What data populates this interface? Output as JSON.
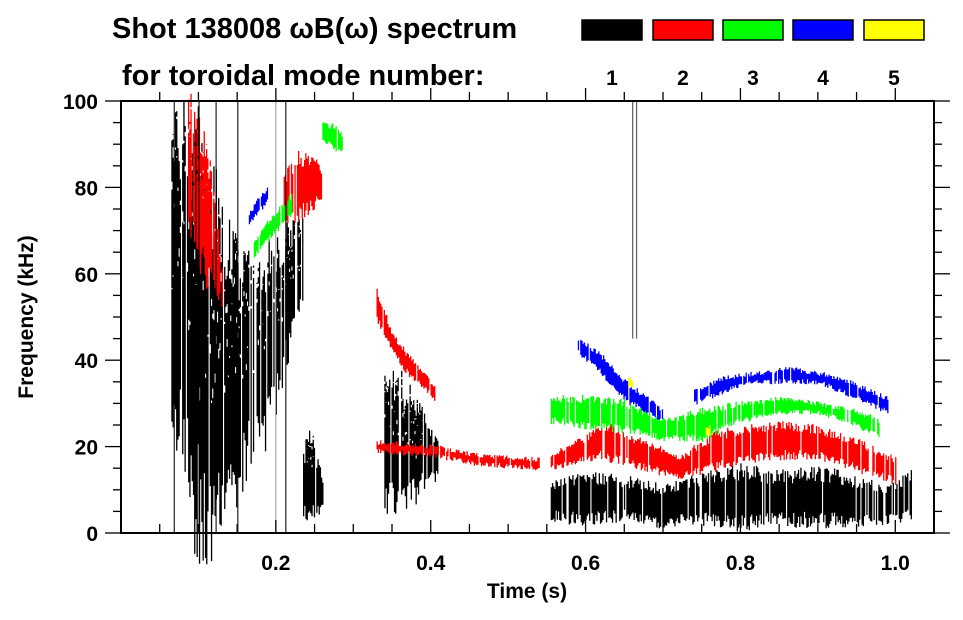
{
  "chart_data": {
    "type": "heatmap",
    "title": "Shot 138008 ωB(ω) spectrum",
    "subtitle": "for toroidal mode number:",
    "xlabel": "Time (s)",
    "ylabel": "Frequency (kHz)",
    "xlim": [
      0,
      1.05
    ],
    "ylim": [
      0,
      100
    ],
    "x_ticks": [
      0.2,
      0.4,
      0.6,
      0.8,
      1.0
    ],
    "x_tick_labels": [
      "0.2",
      "0.4",
      "0.6",
      "0.8",
      "1.0"
    ],
    "y_ticks": [
      0,
      20,
      40,
      60,
      80,
      100
    ],
    "y_tick_labels": [
      "0",
      "20",
      "40",
      "60",
      "80",
      "100"
    ],
    "legend_placement": "top-right",
    "legend": [
      {
        "label": "1",
        "color": "#000000"
      },
      {
        "label": "2",
        "color": "#ff0000"
      },
      {
        "label": "3",
        "color": "#00ff00"
      },
      {
        "label": "4",
        "color": "#0000ff"
      },
      {
        "label": "5",
        "color": "#ffff00"
      }
    ],
    "series": [
      {
        "name": "1",
        "features": [
          {
            "t": [
              0.065,
              0.08,
              0.095,
              0.11,
              0.13,
              0.15,
              0.17,
              0.19,
              0.205,
              0.22,
              0.235
            ],
            "f_low": [
              35,
              20,
              8,
              5,
              8,
              15,
              20,
              25,
              35,
              45,
              55
            ],
            "f_high": [
              96,
              92,
              88,
              80,
              70,
              62,
              60,
              62,
              66,
              72,
              70
            ]
          },
          {
            "t": [
              0.235,
              0.245,
              0.26
            ],
            "f_low": [
              5,
              4,
              6
            ],
            "f_high": [
              18,
              22,
              12
            ]
          },
          {
            "t": [
              0.34,
              0.36,
              0.38,
              0.4,
              0.41
            ],
            "f_low": [
              8,
              8,
              10,
              12,
              14
            ],
            "f_high": [
              36,
              34,
              30,
              24,
              20
            ]
          },
          {
            "t": [
              0.555,
              0.6,
              0.65,
              0.7,
              0.72,
              0.76,
              0.8,
              0.85,
              0.9,
              0.95,
              0.99,
              1.02
            ],
            "f_low": [
              4,
              3,
              4,
              2,
              3,
              3,
              2,
              3,
              3,
              3,
              3,
              4
            ],
            "f_high": [
              11,
              13,
              12,
              10,
              11,
              13,
              14,
              13,
              14,
              12,
              10,
              13
            ]
          }
        ]
      },
      {
        "name": "2",
        "features": [
          {
            "t": [
              0.085,
              0.1,
              0.115,
              0.13
            ],
            "f_low": [
              70,
              65,
              58,
              52
            ],
            "f_high": [
              100,
              94,
              82,
              62
            ]
          },
          {
            "t": [
              0.21,
              0.23,
              0.25,
              0.26
            ],
            "f_low": [
              73,
              74,
              76,
              78
            ],
            "f_high": [
              82,
              87,
              86,
              82
            ]
          },
          {
            "t": [
              0.33,
              0.35,
              0.37,
              0.39,
              0.405
            ],
            "f_low": [
              50,
              42,
              37,
              34,
              31
            ],
            "f_high": [
              56,
              46,
              41,
              37,
              34
            ]
          },
          {
            "t": [
              0.33,
              0.4,
              0.46,
              0.54
            ],
            "f_low": [
              19,
              18,
              16,
              15
            ],
            "f_high": [
              21,
              20,
              18,
              17
            ]
          },
          {
            "t": [
              0.555,
              0.6,
              0.62,
              0.66,
              0.7,
              0.72,
              0.76,
              0.8,
              0.85,
              0.9,
              0.95,
              1.0
            ],
            "f_low": [
              15,
              17,
              18,
              16,
              14,
              13,
              15,
              17,
              18,
              18,
              15,
              12
            ],
            "f_high": [
              18,
              22,
              25,
              22,
              19,
              17,
              22,
              24,
              25,
              24,
              21,
              17
            ]
          }
        ]
      },
      {
        "name": "3",
        "features": [
          {
            "t": [
              0.26,
              0.275,
              0.285
            ],
            "f_low": [
              91,
              89,
              88
            ],
            "f_high": [
              95,
              94,
              92
            ]
          },
          {
            "t": [
              0.17,
              0.19,
              0.21,
              0.22
            ],
            "f_low": [
              64,
              68,
              72,
              74
            ],
            "f_high": [
              67,
              72,
              76,
              78
            ]
          },
          {
            "t": [
              0.555,
              0.6,
              0.65,
              0.7,
              0.75,
              0.8,
              0.85,
              0.9,
              0.95,
              0.98
            ],
            "f_low": [
              26,
              25,
              24,
              22,
              22,
              26,
              28,
              28,
              25,
              22
            ],
            "f_high": [
              31,
              31,
              30,
              26,
              28,
              30,
              31,
              30,
              28,
              26
            ]
          }
        ]
      },
      {
        "name": "4",
        "features": [
          {
            "t": [
              0.165,
              0.18,
              0.19
            ],
            "f_low": [
              72,
              75,
              77
            ],
            "f_high": [
              74,
              78,
              80
            ]
          },
          {
            "t": [
              0.59,
              0.62,
              0.65,
              0.68,
              0.7
            ],
            "f_low": [
              42,
              37,
              31,
              28,
              26
            ],
            "f_high": [
              45,
              41,
              35,
              31,
              28
            ]
          },
          {
            "t": [
              0.74,
              0.78,
              0.82,
              0.86,
              0.9,
              0.94,
              0.99
            ],
            "f_low": [
              30,
              33,
              35,
              35,
              35,
              32,
              28
            ],
            "f_high": [
              33,
              36,
              37,
              38,
              37,
              35,
              31
            ]
          }
        ]
      },
      {
        "name": "5",
        "features": [
          {
            "t": [
              0.655,
              0.66
            ],
            "f_low": [
              34,
              34
            ],
            "f_high": [
              35.5,
              35.5
            ]
          },
          {
            "t": [
              0.755,
              0.76
            ],
            "f_low": [
              23,
              23
            ],
            "f_high": [
              24.5,
              24.5
            ]
          }
        ]
      }
    ]
  }
}
